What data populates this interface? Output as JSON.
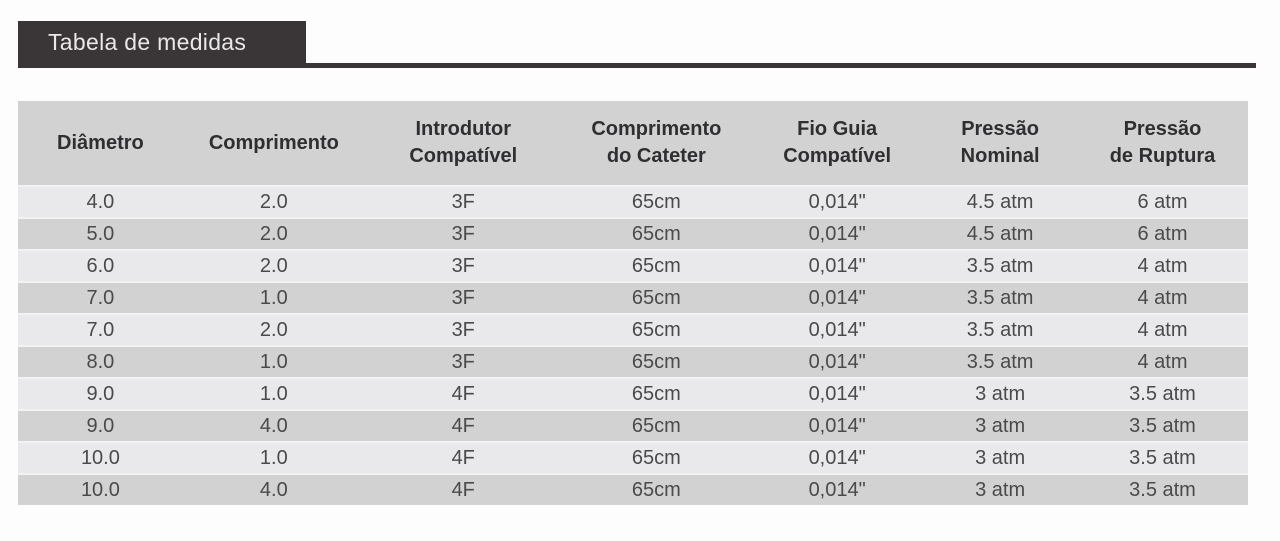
{
  "page": {
    "title": "Tabela de medidas"
  },
  "colors": {
    "accent_dark": "#3a3637",
    "header_bg": "#d2d2d3",
    "row_light": "#e9e9eb",
    "row_dark": "#d2d2d3",
    "header_text": "#2f2e30",
    "cell_text": "#4a494b",
    "title_text": "#e9e7e7"
  },
  "table": {
    "columns": [
      "Diâmetro",
      "Comprimento",
      "Introdutor\nCompatível",
      "Comprimento\ndo Cateter",
      "Fio Guia\nCompatível",
      "Pressão\nNominal",
      "Pressão\nde Ruptura"
    ],
    "rows": [
      [
        "4.0",
        "2.0",
        "3F",
        "65cm",
        "0,014\"",
        "4.5 atm",
        "6 atm"
      ],
      [
        "5.0",
        "2.0",
        "3F",
        "65cm",
        "0,014\"",
        "4.5 atm",
        "6 atm"
      ],
      [
        "6.0",
        "2.0",
        "3F",
        "65cm",
        "0,014\"",
        "3.5 atm",
        "4 atm"
      ],
      [
        "7.0",
        "1.0",
        "3F",
        "65cm",
        "0,014\"",
        "3.5 atm",
        "4 atm"
      ],
      [
        "7.0",
        "2.0",
        "3F",
        "65cm",
        "0,014\"",
        "3.5 atm",
        "4 atm"
      ],
      [
        "8.0",
        "1.0",
        "3F",
        "65cm",
        "0,014\"",
        "3.5 atm",
        "4 atm"
      ],
      [
        "9.0",
        "1.0",
        "4F",
        "65cm",
        "0,014\"",
        "3 atm",
        "3.5 atm"
      ],
      [
        "9.0",
        "4.0",
        "4F",
        "65cm",
        "0,014\"",
        "3 atm",
        "3.5 atm"
      ],
      [
        "10.0",
        "1.0",
        "4F",
        "65cm",
        "0,014\"",
        "3 atm",
        "3.5 atm"
      ],
      [
        "10.0",
        "4.0",
        "4F",
        "65cm",
        "0,014\"",
        "3 atm",
        "3.5 atm"
      ]
    ]
  }
}
